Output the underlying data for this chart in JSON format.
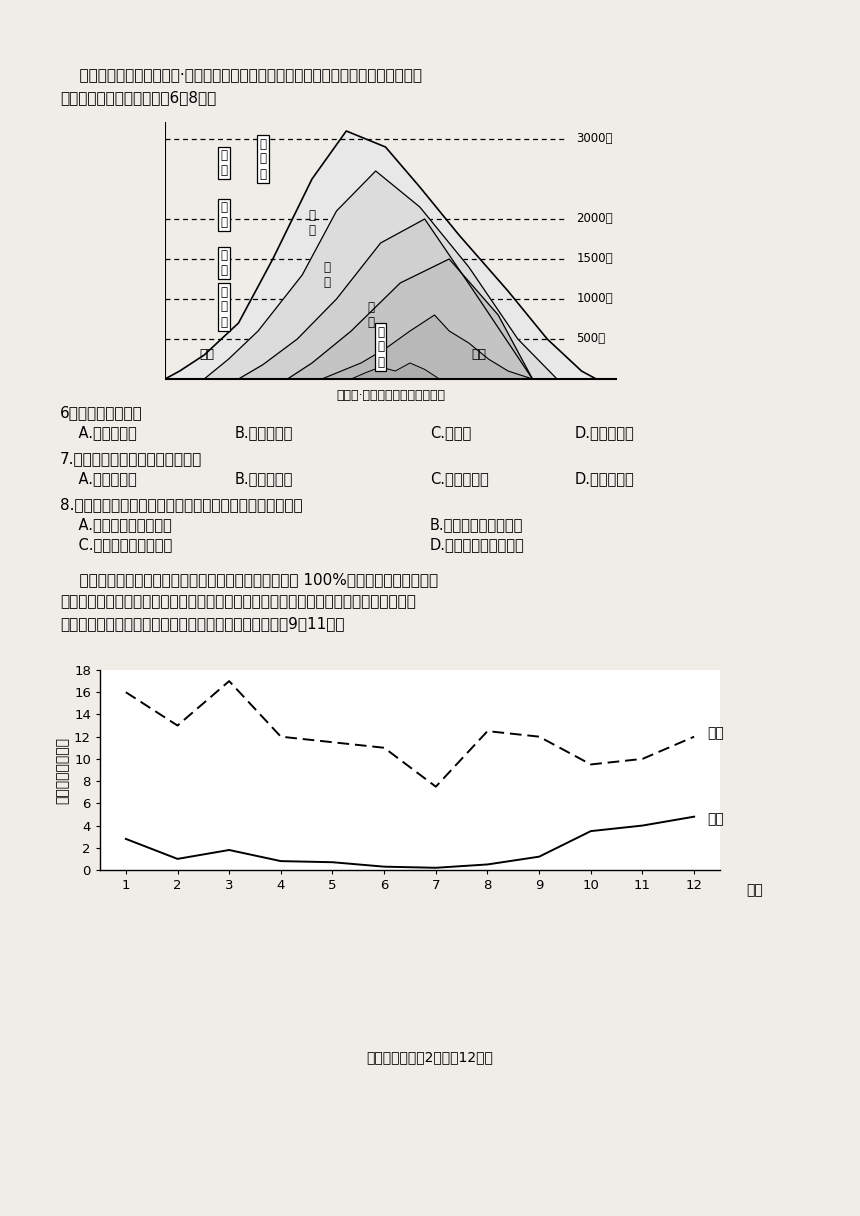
{
  "page_bg": "#f0ede8",
  "intro_text1": "    有学者据我国古代《管子·地员篇》里描述，按照现代华北地区的海拔高度，顺次绘制",
  "intro_text2": "出树木分布图。读下图完成6－8题。",
  "mountain_caption": "《管子·地员篇》山地植被示意图",
  "elevation_heights": [
    3000,
    2000,
    1500,
    1000,
    500
  ],
  "elevation_labels": [
    "3000米",
    "2000米",
    "1500米",
    "1000米",
    "500米"
  ],
  "q6_text": "6．枢榆植被类型为",
  "q6_a": "    A.常绿阔叶林",
  "q6_b": "B.落叶阔叶林",
  "q6_c": "C.针叶林",
  "q6_d": "D.针阔混交林",
  "q7_text": "7.不同高度树种不同，主要是由于",
  "q7_a": "    A.光照的差异",
  "q7_b": "B.降水的差异",
  "q7_c": "C.热量的差异",
  "q7_d": "D.土壤的差异",
  "q8_text": "8.现在有人发现该山树种的分布有很大变化，最主要是因为",
  "q8_a": "    A.滥砍滥伐，获取木材",
  "q8_b": "B.毁林开荒，获取粮食",
  "q8_c": "    C.栽种果树，获取水果",
  "q8_d": "D.气候变干，枯萎死亡",
  "fog_text1": "    在水汽充足、微风及大气稳定的情况下，相对湿度达到 100%时，空气中的水汽使会",
  "fog_text2": "凝结成细微的水滴悬浮于空中，使地面水平的能见度下降，这种天气现象称为雾。下图为",
  "fog_text3": "我国某风景区山腰与山麓各月平均雾日比较图，读图完成9～11题。",
  "shangyao_data": [
    16.0,
    13.0,
    17.0,
    12.0,
    11.5,
    11.0,
    7.5,
    12.5,
    12.0,
    9.5,
    10.0,
    12.0
  ],
  "shanlu_data": [
    2.8,
    1.0,
    1.8,
    0.8,
    0.7,
    0.3,
    0.2,
    0.5,
    1.2,
    3.5,
    4.0,
    4.8
  ],
  "months": [
    1,
    2,
    3,
    4,
    5,
    6,
    7,
    8,
    9,
    10,
    11,
    12
  ],
  "ylabel_fog": "月平均雾日（天）",
  "xlabel_fog": "月份",
  "label_shangyao": "山腰",
  "label_shanlu": "山麓",
  "ylim_fog": [
    0,
    18
  ],
  "yticks_fog": [
    0,
    2,
    4,
    6,
    8,
    10,
    12,
    14,
    16,
    18
  ],
  "footer": "文科综合试题第2页（共12页）"
}
